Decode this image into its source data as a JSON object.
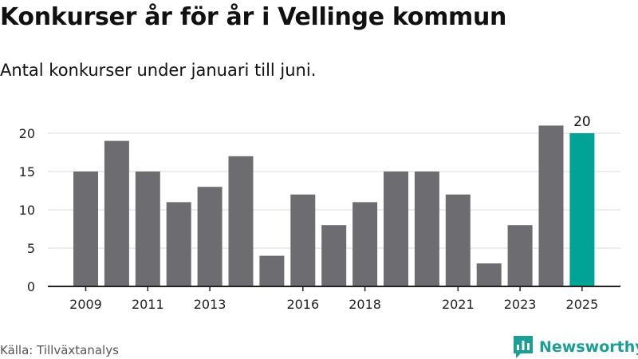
{
  "title": "Konkurser år för år i Vellinge kommun",
  "subtitle": "Antal konkurser under januari till juni.",
  "source": "Källa: Tillväxtanalys",
  "brand": {
    "name": "Newsworthy",
    "icon": "newsworthy-logo-icon",
    "color": "#1a9e96"
  },
  "colors": {
    "bar": "#6d6c71",
    "highlight": "#00a396",
    "grid": "#d9d9d9",
    "axis": "#222222"
  },
  "chart_data": {
    "type": "bar",
    "title": "Konkurser år för år i Vellinge kommun",
    "subtitle": "Antal konkurser under januari till juni.",
    "xlabel": "",
    "ylabel": "",
    "categories": [
      "2009",
      "2010",
      "2011",
      "2012",
      "2013",
      "2014",
      "2015",
      "2016",
      "2017",
      "2018",
      "2019",
      "2020",
      "2021",
      "2022",
      "2023",
      "2024",
      "2025"
    ],
    "values": [
      15,
      19,
      15,
      11,
      13,
      17,
      4,
      12,
      8,
      11,
      15,
      15,
      12,
      3,
      8,
      21,
      20
    ],
    "x_tick_labels": [
      "2009",
      "2011",
      "2013",
      "2016",
      "2018",
      "2021",
      "2023",
      "2025"
    ],
    "y_ticks": [
      0,
      5,
      10,
      15,
      20
    ],
    "ylim": [
      0,
      21
    ],
    "highlight_category": "2025",
    "data_labels": [
      {
        "category": "2025",
        "text": "20"
      }
    ],
    "grid": true,
    "legend": "none"
  }
}
